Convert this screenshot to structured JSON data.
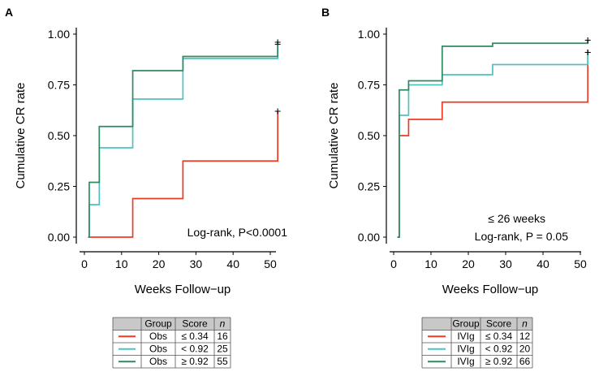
{
  "chart_data": [
    {
      "type": "line",
      "panel": "A",
      "xlabel": "Weeks Follow−up",
      "ylabel": "Cumulative CR rate",
      "xlim": [
        0,
        55
      ],
      "ylim": [
        0,
        1
      ],
      "xticks": [
        "0",
        "10",
        "20",
        "30",
        "40",
        "50"
      ],
      "yticks": [
        "0.00",
        "0.25",
        "0.50",
        "0.75",
        "1.00"
      ],
      "annotations": [
        "Log-rank, P<0.0001"
      ],
      "series": [
        {
          "color": "#ef3b24",
          "steps": [
            [
              1,
              0
            ],
            [
              13,
              0.19
            ],
            [
              26.5,
              0.375
            ],
            [
              52,
              0.62
            ]
          ]
        },
        {
          "color": "#4fc3c0",
          "steps": [
            [
              1,
              0
            ],
            [
              1.3,
              0.16
            ],
            [
              4,
              0.44
            ],
            [
              13,
              0.68
            ],
            [
              26.5,
              0.88
            ],
            [
              52,
              0.95
            ]
          ]
        },
        {
          "color": "#2e8b61",
          "steps": [
            [
              1,
              0
            ],
            [
              1.3,
              0.27
            ],
            [
              4,
              0.545
            ],
            [
              13,
              0.82
            ],
            [
              26.5,
              0.89
            ],
            [
              52,
              0.96
            ]
          ]
        }
      ],
      "legend_table": {
        "headers": [
          "",
          "Group",
          "Score",
          "n"
        ],
        "rows": [
          {
            "color": "#ef3b24",
            "group": "Obs",
            "score": "≤ 0.34",
            "n": "16"
          },
          {
            "color": "#4fc3c0",
            "group": "Obs",
            "score": "< 0.92",
            "n": "25"
          },
          {
            "color": "#2e8b61",
            "group": "Obs",
            "score": "≥ 0.92",
            "n": "55"
          }
        ]
      }
    },
    {
      "type": "line",
      "panel": "B",
      "xlabel": "Weeks Follow−up",
      "ylabel": "Cumulative CR rate",
      "xlim": [
        0,
        55
      ],
      "ylim": [
        0,
        1
      ],
      "xticks": [
        "0",
        "10",
        "20",
        "30",
        "40",
        "50"
      ],
      "yticks": [
        "0.00",
        "0.25",
        "0.50",
        "0.75",
        "1.00"
      ],
      "annotations": [
        "≤ 26 weeks",
        "Log-rank, P = 0.05"
      ],
      "series": [
        {
          "color": "#ef3b24",
          "steps": [
            [
              1,
              0
            ],
            [
              1.5,
              0.5
            ],
            [
              4,
              0.58
            ],
            [
              13,
              0.665
            ],
            [
              52,
              0.91
            ]
          ]
        },
        {
          "color": "#4fc3c0",
          "steps": [
            [
              1,
              0
            ],
            [
              1.5,
              0.6
            ],
            [
              4,
              0.75
            ],
            [
              13,
              0.8
            ],
            [
              26.5,
              0.85
            ],
            [
              52,
              0.91
            ]
          ]
        },
        {
          "color": "#2e8b61",
          "steps": [
            [
              1,
              0
            ],
            [
              1.5,
              0.725
            ],
            [
              4,
              0.77
            ],
            [
              13,
              0.94
            ],
            [
              26.5,
              0.955
            ],
            [
              52,
              0.97
            ]
          ]
        }
      ],
      "legend_table": {
        "headers": [
          "",
          "Group",
          "Score",
          "n"
        ],
        "rows": [
          {
            "color": "#ef3b24",
            "group": "IVIg",
            "score": "≤ 0.34",
            "n": "12"
          },
          {
            "color": "#4fc3c0",
            "group": "IVIg",
            "score": "< 0.92",
            "n": "20"
          },
          {
            "color": "#2e8b61",
            "group": "IVIg",
            "score": "≥ 0.92",
            "n": "66"
          }
        ]
      }
    }
  ]
}
